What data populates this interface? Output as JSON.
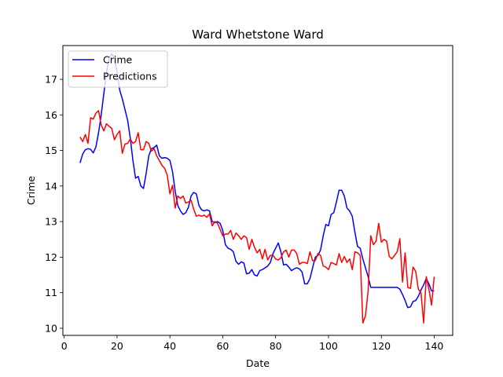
{
  "chart_data": {
    "type": "line",
    "title": "Ward Whetstone Ward",
    "xlabel": "Date",
    "ylabel": "Crime",
    "xlim": [
      -0.5,
      147
    ],
    "ylim": [
      9.8,
      17.95
    ],
    "xticks": [
      0,
      20,
      40,
      60,
      80,
      100,
      120,
      140
    ],
    "yticks": [
      10,
      11,
      12,
      13,
      14,
      15,
      16,
      17
    ],
    "grid": false,
    "legend_position": "top-left",
    "series": [
      {
        "name": "Crime",
        "color": "#0000ff",
        "points": [
          [
            6,
            14.65
          ],
          [
            7,
            14.9
          ],
          [
            8,
            15.02
          ],
          [
            9,
            15.05
          ],
          [
            10,
            15.03
          ],
          [
            11,
            14.93
          ],
          [
            12,
            15.1
          ],
          [
            13,
            15.5
          ],
          [
            14,
            16.0
          ],
          [
            15,
            16.6
          ],
          [
            16,
            17.2
          ],
          [
            17,
            17.6
          ],
          [
            18,
            17.72
          ],
          [
            19,
            17.6
          ],
          [
            20,
            17.2
          ],
          [
            21,
            16.7
          ],
          [
            22,
            16.45
          ],
          [
            23,
            16.15
          ],
          [
            24,
            15.85
          ],
          [
            25,
            15.35
          ],
          [
            26,
            14.72
          ],
          [
            27,
            14.22
          ],
          [
            28,
            14.27
          ],
          [
            29,
            14.0
          ],
          [
            30,
            13.93
          ],
          [
            31,
            14.35
          ],
          [
            32,
            14.85
          ],
          [
            33,
            15.05
          ],
          [
            34,
            15.08
          ],
          [
            35,
            15.15
          ],
          [
            36,
            14.85
          ],
          [
            37,
            14.78
          ],
          [
            38,
            14.8
          ],
          [
            39,
            14.78
          ],
          [
            40,
            14.72
          ],
          [
            41,
            14.4
          ],
          [
            42,
            13.85
          ],
          [
            43,
            13.45
          ],
          [
            44,
            13.3
          ],
          [
            45,
            13.2
          ],
          [
            46,
            13.25
          ],
          [
            47,
            13.4
          ],
          [
            48,
            13.72
          ],
          [
            49,
            13.82
          ],
          [
            50,
            13.78
          ],
          [
            51,
            13.45
          ],
          [
            52,
            13.33
          ],
          [
            53,
            13.3
          ],
          [
            54,
            13.33
          ],
          [
            55,
            13.3
          ],
          [
            56,
            13.0
          ],
          [
            57,
            12.97
          ],
          [
            58,
            13.0
          ],
          [
            59,
            12.95
          ],
          [
            60,
            12.75
          ],
          [
            61,
            12.35
          ],
          [
            62,
            12.25
          ],
          [
            63,
            12.22
          ],
          [
            64,
            12.15
          ],
          [
            65,
            11.88
          ],
          [
            66,
            11.8
          ],
          [
            67,
            11.87
          ],
          [
            68,
            11.83
          ],
          [
            69,
            11.53
          ],
          [
            70,
            11.55
          ],
          [
            71,
            11.65
          ],
          [
            72,
            11.5
          ],
          [
            73,
            11.47
          ],
          [
            74,
            11.62
          ],
          [
            75,
            11.65
          ],
          [
            76,
            11.7
          ],
          [
            77,
            11.75
          ],
          [
            78,
            11.85
          ],
          [
            79,
            12.1
          ],
          [
            80,
            12.25
          ],
          [
            81,
            12.4
          ],
          [
            82,
            12.15
          ],
          [
            83,
            11.78
          ],
          [
            84,
            11.8
          ],
          [
            85,
            11.72
          ],
          [
            86,
            11.62
          ],
          [
            87,
            11.67
          ],
          [
            88,
            11.7
          ],
          [
            89,
            11.67
          ],
          [
            90,
            11.58
          ],
          [
            91,
            11.25
          ],
          [
            92,
            11.25
          ],
          [
            93,
            11.4
          ],
          [
            94,
            11.7
          ],
          [
            95,
            12.0
          ],
          [
            96,
            12.05
          ],
          [
            97,
            12.2
          ],
          [
            98,
            12.6
          ],
          [
            99,
            12.92
          ],
          [
            100,
            12.88
          ],
          [
            101,
            13.2
          ],
          [
            102,
            13.25
          ],
          [
            103,
            13.55
          ],
          [
            104,
            13.88
          ],
          [
            105,
            13.88
          ],
          [
            106,
            13.72
          ],
          [
            107,
            13.38
          ],
          [
            108,
            13.3
          ],
          [
            109,
            13.15
          ],
          [
            110,
            12.7
          ],
          [
            111,
            12.3
          ],
          [
            112,
            12.25
          ],
          [
            113,
            11.95
          ],
          [
            114,
            11.7
          ],
          [
            115,
            11.45
          ],
          [
            116,
            11.15
          ],
          [
            117,
            11.15
          ],
          [
            118,
            11.15
          ],
          [
            119,
            11.15
          ],
          [
            120,
            11.15
          ],
          [
            121,
            11.15
          ],
          [
            122,
            11.15
          ],
          [
            123,
            11.15
          ],
          [
            124,
            11.15
          ],
          [
            125,
            11.15
          ],
          [
            126,
            11.15
          ],
          [
            127,
            11.1
          ],
          [
            128,
            10.95
          ],
          [
            129,
            10.78
          ],
          [
            130,
            10.58
          ],
          [
            131,
            10.6
          ],
          [
            132,
            10.75
          ],
          [
            133,
            10.78
          ],
          [
            134,
            10.9
          ],
          [
            135,
            11.08
          ],
          [
            136,
            11.22
          ],
          [
            137,
            11.4
          ],
          [
            138,
            11.25
          ],
          [
            139,
            11.05
          ],
          [
            140,
            11.05
          ]
        ]
      },
      {
        "name": "Predictions",
        "color": "#ff0000",
        "points": [
          [
            6,
            15.38
          ],
          [
            7,
            15.25
          ],
          [
            8,
            15.45
          ],
          [
            9,
            15.2
          ],
          [
            10,
            15.92
          ],
          [
            11,
            15.88
          ],
          [
            12,
            16.05
          ],
          [
            13,
            16.12
          ],
          [
            14,
            15.72
          ],
          [
            15,
            15.55
          ],
          [
            16,
            15.75
          ],
          [
            17,
            15.68
          ],
          [
            18,
            15.62
          ],
          [
            19,
            15.3
          ],
          [
            20,
            15.45
          ],
          [
            21,
            15.55
          ],
          [
            22,
            14.92
          ],
          [
            23,
            15.18
          ],
          [
            24,
            15.2
          ],
          [
            25,
            15.32
          ],
          [
            26,
            15.2
          ],
          [
            27,
            15.25
          ],
          [
            28,
            15.5
          ],
          [
            29,
            15.02
          ],
          [
            30,
            15.02
          ],
          [
            31,
            15.25
          ],
          [
            32,
            15.2
          ],
          [
            33,
            14.98
          ],
          [
            34,
            15.05
          ],
          [
            35,
            14.85
          ],
          [
            36,
            14.72
          ],
          [
            37,
            14.58
          ],
          [
            38,
            14.5
          ],
          [
            39,
            14.3
          ],
          [
            40,
            13.78
          ],
          [
            41,
            14.02
          ],
          [
            42,
            13.38
          ],
          [
            43,
            13.72
          ],
          [
            44,
            13.65
          ],
          [
            45,
            13.72
          ],
          [
            46,
            13.52
          ],
          [
            47,
            13.55
          ],
          [
            48,
            13.6
          ],
          [
            49,
            13.35
          ],
          [
            50,
            13.15
          ],
          [
            51,
            13.18
          ],
          [
            52,
            13.15
          ],
          [
            53,
            13.18
          ],
          [
            54,
            13.12
          ],
          [
            55,
            13.22
          ],
          [
            56,
            12.88
          ],
          [
            57,
            13.0
          ],
          [
            58,
            12.95
          ],
          [
            59,
            12.78
          ],
          [
            60,
            12.6
          ],
          [
            61,
            12.65
          ],
          [
            62,
            12.65
          ],
          [
            63,
            12.75
          ],
          [
            64,
            12.5
          ],
          [
            65,
            12.68
          ],
          [
            66,
            12.6
          ],
          [
            67,
            12.5
          ],
          [
            68,
            12.6
          ],
          [
            69,
            12.55
          ],
          [
            70,
            12.22
          ],
          [
            71,
            12.5
          ],
          [
            72,
            12.28
          ],
          [
            73,
            12.12
          ],
          [
            74,
            12.22
          ],
          [
            75,
            11.95
          ],
          [
            76,
            12.22
          ],
          [
            77,
            11.92
          ],
          [
            78,
            12.05
          ],
          [
            79,
            12.05
          ],
          [
            80,
            11.95
          ],
          [
            81,
            11.92
          ],
          [
            82,
            11.98
          ],
          [
            83,
            12.15
          ],
          [
            84,
            12.2
          ],
          [
            85,
            12.0
          ],
          [
            86,
            12.2
          ],
          [
            87,
            12.2
          ],
          [
            88,
            12.1
          ],
          [
            89,
            11.8
          ],
          [
            90,
            11.85
          ],
          [
            91,
            11.85
          ],
          [
            92,
            11.82
          ],
          [
            93,
            12.15
          ],
          [
            94,
            11.9
          ],
          [
            95,
            11.9
          ],
          [
            96,
            12.1
          ],
          [
            97,
            12.05
          ],
          [
            98,
            11.75
          ],
          [
            99,
            11.72
          ],
          [
            100,
            11.65
          ],
          [
            101,
            11.85
          ],
          [
            102,
            11.82
          ],
          [
            103,
            11.78
          ],
          [
            104,
            12.1
          ],
          [
            105,
            11.85
          ],
          [
            106,
            12.02
          ],
          [
            107,
            11.85
          ],
          [
            108,
            11.95
          ],
          [
            109,
            11.65
          ],
          [
            110,
            12.15
          ],
          [
            111,
            12.12
          ],
          [
            112,
            12.05
          ],
          [
            113,
            10.15
          ],
          [
            114,
            10.35
          ],
          [
            115,
            11.05
          ],
          [
            116,
            12.6
          ],
          [
            117,
            12.35
          ],
          [
            118,
            12.45
          ],
          [
            119,
            12.95
          ],
          [
            120,
            12.42
          ],
          [
            121,
            12.5
          ],
          [
            122,
            12.45
          ],
          [
            123,
            12.02
          ],
          [
            124,
            11.95
          ],
          [
            125,
            12.05
          ],
          [
            126,
            12.15
          ],
          [
            127,
            12.52
          ],
          [
            128,
            11.3
          ],
          [
            129,
            12.12
          ],
          [
            130,
            11.15
          ],
          [
            131,
            11.12
          ],
          [
            132,
            11.72
          ],
          [
            133,
            11.6
          ],
          [
            134,
            11.1
          ],
          [
            135,
            11.0
          ],
          [
            136,
            10.15
          ],
          [
            137,
            11.45
          ],
          [
            138,
            11.1
          ],
          [
            139,
            10.65
          ],
          [
            140,
            11.45
          ]
        ]
      }
    ]
  }
}
